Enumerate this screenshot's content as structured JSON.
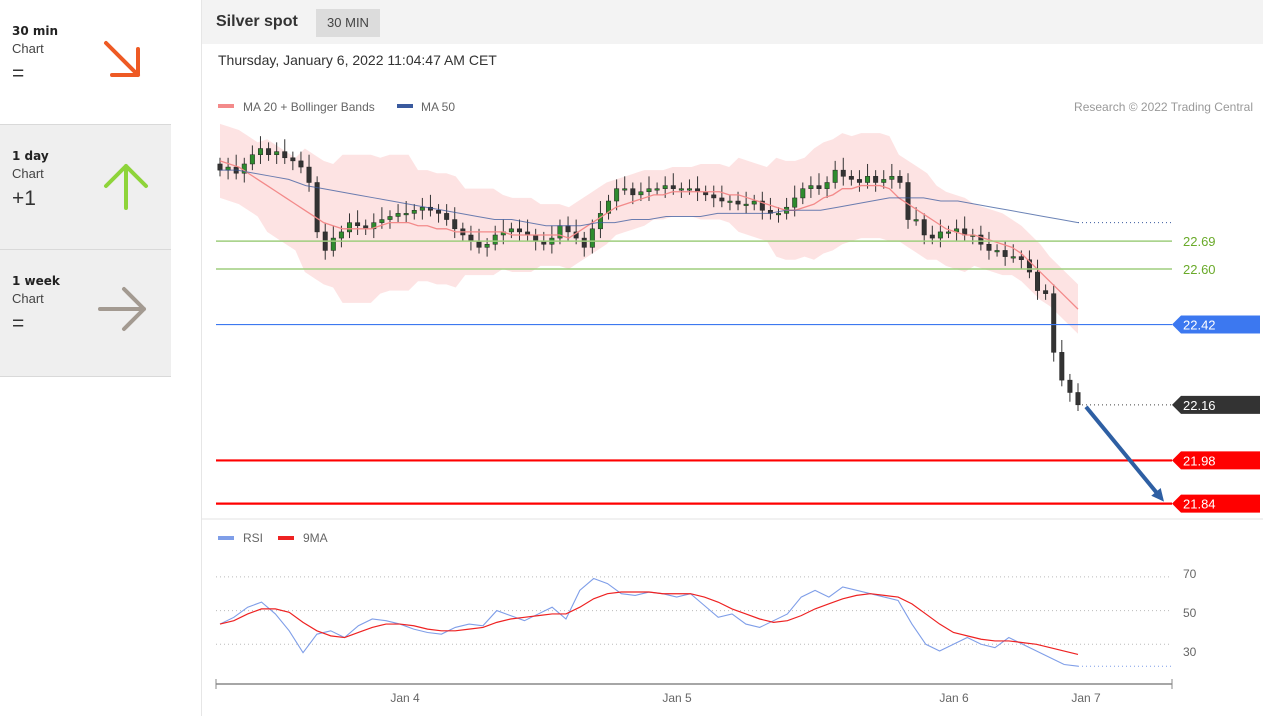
{
  "sidebar": {
    "items": [
      {
        "name": "30 min",
        "sub": "Chart",
        "symbol": "=",
        "arrow": "down-right-arrow-icon",
        "color": "#ee5a24",
        "active": false
      },
      {
        "name": "1 day",
        "sub": "Chart",
        "symbol": "+1",
        "arrow": "up-arrow-icon",
        "color": "#8ed43a",
        "active": true
      },
      {
        "name": "1 week",
        "sub": "Chart",
        "symbol": "=",
        "arrow": "right-arrow-icon",
        "color": "#a39a91",
        "active": true
      }
    ]
  },
  "header": {
    "title": "Silver spot",
    "timeframe": "30 MIN"
  },
  "timestamp": "Thursday, January 6, 2022 11:04:47 AM CET",
  "copyright": "Research © 2022 Trading Central",
  "colors": {
    "bollinger": "#f38a8a",
    "ma50": "#3a5a9e",
    "rsi": "#7f9ee8",
    "rsi_ma": "#ee2222",
    "green_level": "#9fce7e",
    "blue_level": "#3c78f0",
    "red_level": "#ff0000",
    "current": "#333333",
    "projection": "#2e5fa3"
  },
  "chart_data": [
    {
      "type": "candlestick",
      "legend": [
        {
          "name": "MA 20 + Bollinger Bands",
          "color": "#f38a8a"
        },
        {
          "name": "MA 50",
          "color": "#3a5a9e"
        }
      ],
      "x_ticks": [
        "Jan 4",
        "Jan 5",
        "Jan 6",
        "Jan 7"
      ],
      "ylim": [
        21.8,
        23.05
      ],
      "close": [
        22.92,
        22.93,
        22.91,
        22.94,
        22.97,
        22.99,
        22.97,
        22.98,
        22.96,
        22.95,
        22.93,
        22.88,
        22.72,
        22.66,
        22.7,
        22.72,
        22.75,
        22.74,
        22.73,
        22.75,
        22.76,
        22.77,
        22.78,
        22.78,
        22.79,
        22.8,
        22.79,
        22.78,
        22.76,
        22.73,
        22.71,
        22.69,
        22.67,
        22.68,
        22.71,
        22.72,
        22.73,
        22.72,
        22.71,
        22.69,
        22.68,
        22.7,
        22.74,
        22.72,
        22.7,
        22.67,
        22.73,
        22.78,
        22.82,
        22.86,
        22.86,
        22.84,
        22.85,
        22.86,
        22.86,
        22.87,
        22.86,
        22.86,
        22.86,
        22.85,
        22.84,
        22.83,
        22.82,
        22.82,
        22.81,
        22.81,
        22.82,
        22.79,
        22.78,
        22.78,
        22.8,
        22.83,
        22.86,
        22.87,
        22.86,
        22.88,
        22.92,
        22.9,
        22.89,
        22.88,
        22.9,
        22.88,
        22.89,
        22.9,
        22.88,
        22.76,
        22.76,
        22.71,
        22.7,
        22.72,
        22.72,
        22.73,
        22.71,
        22.71,
        22.68,
        22.66,
        22.66,
        22.64,
        22.64,
        22.63,
        22.59,
        22.53,
        22.52,
        22.33,
        22.24,
        22.2,
        22.16
      ],
      "ma20": [
        22.95,
        22.94,
        22.93,
        22.91,
        22.89,
        22.87,
        22.85,
        22.83,
        22.81,
        22.79,
        22.77,
        22.75,
        22.74,
        22.73,
        22.73,
        22.73,
        22.73,
        22.74,
        22.75,
        22.75,
        22.75,
        22.74,
        22.74,
        22.73,
        22.73,
        22.72,
        22.72,
        22.72,
        22.72,
        22.72,
        22.72,
        22.71,
        22.71,
        22.71,
        22.71,
        22.71,
        22.71,
        22.7,
        22.72,
        22.74,
        22.76,
        22.78,
        22.8,
        22.81,
        22.82,
        22.83,
        22.84,
        22.84,
        22.85,
        22.85,
        22.85,
        22.85,
        22.85,
        22.85,
        22.84,
        22.84,
        22.83,
        22.82,
        22.81,
        22.8,
        22.79,
        22.79,
        22.8,
        22.81,
        22.83,
        22.84,
        22.86,
        22.86,
        22.87,
        22.87,
        22.87,
        22.86,
        22.83,
        22.81,
        22.79,
        22.77,
        22.75,
        22.73,
        22.72,
        22.71,
        22.71,
        22.7,
        22.69,
        22.68,
        22.67,
        22.65,
        22.62,
        22.59,
        22.56,
        22.53,
        22.5,
        22.47
      ],
      "ma50": [
        22.92,
        22.92,
        22.91,
        22.9,
        22.89,
        22.87,
        22.86,
        22.85,
        22.84,
        22.83,
        22.82,
        22.81,
        22.8,
        22.79,
        22.78,
        22.77,
        22.76,
        22.76,
        22.75,
        22.74,
        22.74,
        22.74,
        22.75,
        22.75,
        22.76,
        22.76,
        22.77,
        22.77,
        22.77,
        22.78,
        22.78,
        22.78,
        22.78,
        22.79,
        22.79,
        22.79,
        22.8,
        22.81,
        22.82,
        22.83,
        22.83,
        22.83,
        22.82,
        22.82,
        22.81,
        22.8,
        22.79,
        22.78,
        22.77,
        22.76,
        22.75
      ],
      "levels": [
        {
          "value": 22.69,
          "label": "22.69",
          "kind": "resistance"
        },
        {
          "value": 22.6,
          "label": "22.60",
          "kind": "resistance"
        },
        {
          "value": 22.42,
          "label": "22.42",
          "kind": "pivot"
        },
        {
          "value": 22.16,
          "label": "22.16",
          "kind": "current"
        },
        {
          "value": 21.98,
          "label": "21.98",
          "kind": "support"
        },
        {
          "value": 21.84,
          "label": "21.84",
          "kind": "support"
        }
      ],
      "projection": {
        "from": 22.16,
        "to": 21.84
      }
    },
    {
      "type": "line",
      "legend": [
        {
          "name": "RSI",
          "color": "#7f9ee8"
        },
        {
          "name": "9MA",
          "color": "#ee2222"
        }
      ],
      "y_ticks": [
        "70",
        "50",
        "30"
      ],
      "ylim": [
        10,
        80
      ],
      "rsi": [
        42,
        46,
        52,
        55,
        48,
        38,
        25,
        36,
        38,
        34,
        41,
        45,
        44,
        42,
        39,
        37,
        36,
        40,
        42,
        41,
        50,
        47,
        44,
        48,
        52,
        45,
        62,
        69,
        66,
        60,
        59,
        61,
        60,
        58,
        60,
        53,
        46,
        48,
        42,
        40,
        44,
        48,
        58,
        62,
        58,
        64,
        62,
        60,
        58,
        56,
        42,
        30,
        26,
        30,
        34,
        30,
        28,
        34,
        30,
        26,
        22,
        18,
        17
      ],
      "ma9": [
        42,
        44,
        48,
        51,
        51,
        49,
        43,
        38,
        35,
        34,
        37,
        40,
        42,
        42,
        41,
        39,
        38,
        38,
        39,
        40,
        43,
        45,
        46,
        47,
        48,
        48,
        52,
        57,
        60,
        61,
        61,
        61,
        60,
        60,
        60,
        58,
        55,
        51,
        48,
        45,
        43,
        44,
        47,
        51,
        54,
        57,
        59,
        60,
        59,
        58,
        54,
        48,
        42,
        37,
        35,
        33,
        32,
        32,
        31,
        30,
        28,
        26,
        24
      ]
    }
  ]
}
